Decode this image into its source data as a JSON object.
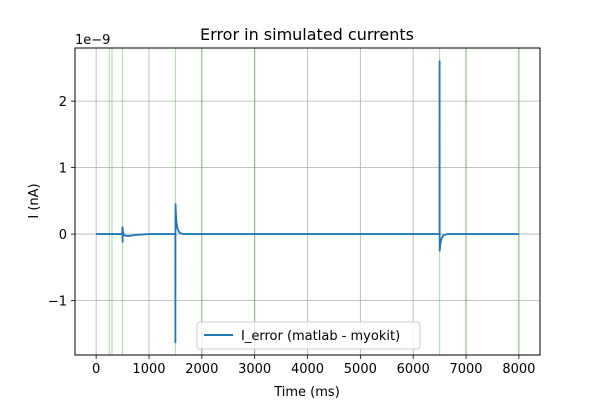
{
  "chart_data": {
    "type": "line",
    "title": "Error in simulated currents",
    "xlabel": "Time (ms)",
    "ylabel": "I (nA)",
    "y_offset_label": "1e−9",
    "xlim": [
      -400,
      8400
    ],
    "ylim": [
      -1.82,
      2.8
    ],
    "x_ticks": [
      0,
      1000,
      2000,
      3000,
      4000,
      5000,
      6000,
      7000,
      8000
    ],
    "x_tick_labels": [
      "0",
      "1000",
      "2000",
      "3000",
      "4000",
      "5000",
      "6000",
      "7000",
      "8000"
    ],
    "y_ticks": [
      -1,
      0,
      1,
      2
    ],
    "y_tick_labels": [
      "−1",
      "0",
      "1",
      "2"
    ],
    "grid": true,
    "legend_position": "lower center",
    "vertical_markers": [
      250,
      300,
      500,
      1500,
      2000,
      3000,
      6500,
      7000,
      8000
    ],
    "series": [
      {
        "name": "I_error (matlab - myokit)",
        "color": "#1f77b4",
        "x": [
          0,
          400,
          495,
          498,
          500,
          502,
          505,
          510,
          530,
          600,
          700,
          800,
          1000,
          1200,
          1400,
          1480,
          1495,
          1499,
          1500,
          1501,
          1503,
          1505,
          1510,
          1520,
          1540,
          1570,
          1600,
          1650,
          1700,
          1800,
          2000,
          3000,
          4000,
          5000,
          6000,
          6400,
          6490,
          6499,
          6500,
          6501,
          6502,
          6503,
          6510,
          6520,
          6540,
          6570,
          6600,
          6650,
          6700,
          6800,
          7000,
          7500,
          8000
        ],
        "values": [
          0,
          0,
          0,
          0.1,
          -0.12,
          0.1,
          0.06,
          0.02,
          -0.02,
          -0.03,
          -0.02,
          -0.01,
          0,
          0,
          0,
          0,
          0.01,
          0,
          -1.63,
          0,
          0.45,
          0.4,
          0.3,
          0.18,
          0.08,
          0.03,
          0.01,
          0,
          0,
          0,
          0,
          0,
          0,
          0,
          0,
          0,
          0,
          0,
          2.6,
          0,
          -0.25,
          -0.24,
          -0.18,
          -0.12,
          -0.06,
          -0.02,
          -0.01,
          0,
          0,
          0,
          0,
          0,
          0
        ]
      }
    ]
  }
}
